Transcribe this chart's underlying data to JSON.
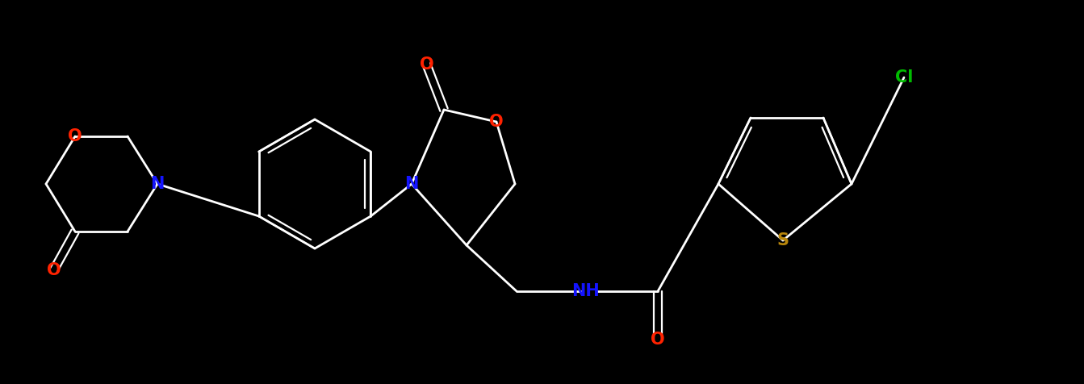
{
  "background_color": "#000000",
  "figsize": [
    13.43,
    4.76
  ],
  "dpi": 100,
  "bond_lw": 2.0,
  "atom_colors": {
    "O": "#ff2200",
    "N": "#1414ff",
    "S": "#b8860b",
    "Cl": "#00bb00",
    "C": "#ffffff",
    "H": "#ffffff"
  }
}
